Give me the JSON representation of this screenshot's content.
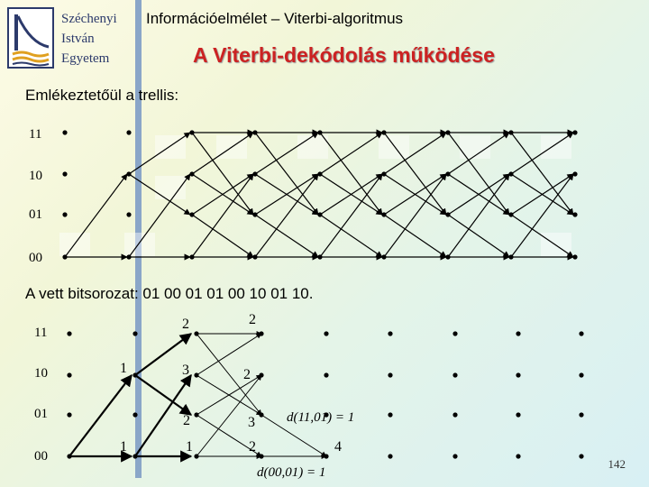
{
  "header": {
    "university_lines": [
      "Széchenyi",
      "István",
      "Egyetem"
    ],
    "course_title": "Információelmélet – Viterbi-algoritmus",
    "slide_title": "A Viterbi-dekódolás működése"
  },
  "reminder_text": "Emlékeztetőül a trellis:",
  "received_text": "A vett bitsorozat: 01 00 01 01 00 10 01 10.",
  "state_labels": [
    "11",
    "10",
    "01",
    "00"
  ],
  "metrics": {
    "m_11_3": "2",
    "m_11_4": "2",
    "m_10_2": "1",
    "m_10_3": "3",
    "m_10_4": "2",
    "m_01_3": "2",
    "m_01_4": "3",
    "m_00_2": "1",
    "m_00_3": "1",
    "m_00_4": "2",
    "m_00_5": "4"
  },
  "formulas": {
    "f1": "d(11,01) = 1",
    "f2": "d(00,01) = 1"
  },
  "page_number": "142"
}
